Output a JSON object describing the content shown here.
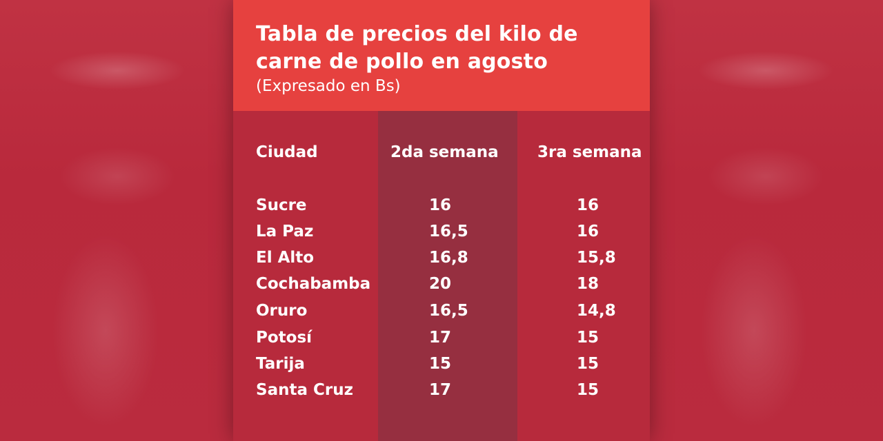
{
  "header": {
    "title": "Tabla de precios del kilo de carne de pollo en agosto",
    "subtitle": "(Expresado en Bs)"
  },
  "table": {
    "columns": [
      "Ciudad",
      "2da semana",
      "3ra semana"
    ],
    "rows": [
      {
        "city": "Sucre",
        "week2": "16",
        "week3": "16"
      },
      {
        "city": "La Paz",
        "week2": "16,5",
        "week3": "16"
      },
      {
        "city": "El Alto",
        "week2": "16,8",
        "week3": "15,8"
      },
      {
        "city": "Cochabamba",
        "week2": "20",
        "week3": "18"
      },
      {
        "city": "Oruro",
        "week2": "16,5",
        "week3": "14,8"
      },
      {
        "city": "Potosí",
        "week2": "17",
        "week3": "15"
      },
      {
        "city": "Tarija",
        "week2": "15",
        "week3": "15"
      },
      {
        "city": "Santa Cruz",
        "week2": "17",
        "week3": "15"
      }
    ]
  },
  "colors": {
    "header_bg": "#e6413f",
    "table_bg": "#b72a3c",
    "highlight_column_bg": "#962f40",
    "text": "#ffffff"
  }
}
